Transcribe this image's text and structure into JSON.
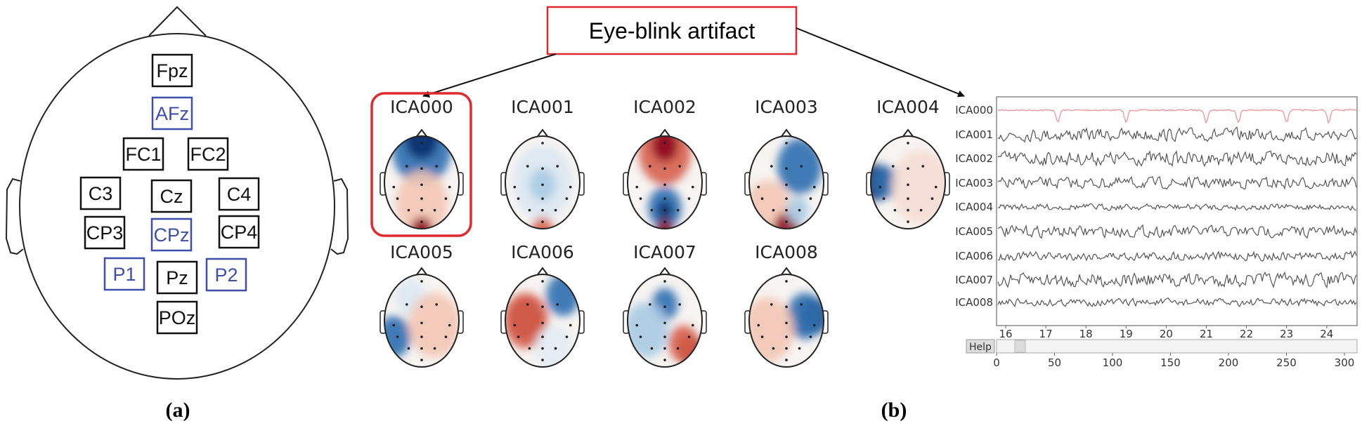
{
  "panel_a": {
    "label": "(a)",
    "electrodes": [
      {
        "name": "Fpz",
        "highlighted": false
      },
      {
        "name": "AFz",
        "highlighted": true
      },
      {
        "name": "FC1",
        "highlighted": false
      },
      {
        "name": "FC2",
        "highlighted": false
      },
      {
        "name": "C3",
        "highlighted": false
      },
      {
        "name": "Cz",
        "highlighted": false
      },
      {
        "name": "C4",
        "highlighted": false
      },
      {
        "name": "CP3",
        "highlighted": false
      },
      {
        "name": "CPz",
        "highlighted": true
      },
      {
        "name": "CP4",
        "highlighted": false
      },
      {
        "name": "P1",
        "highlighted": true
      },
      {
        "name": "Pz",
        "highlighted": false
      },
      {
        "name": "P2",
        "highlighted": true
      },
      {
        "name": "POz",
        "highlighted": false
      }
    ],
    "colors": {
      "normal": "#111111",
      "highlight": "#3f4ea8"
    }
  },
  "callout": {
    "text": "Eye-blink artifact",
    "color": "#e0282f"
  },
  "topomaps": [
    "ICA000",
    "ICA001",
    "ICA002",
    "ICA003",
    "ICA004",
    "ICA005",
    "ICA006",
    "ICA007",
    "ICA008"
  ],
  "selected_component": "ICA000",
  "trace_panel": {
    "labels": [
      "ICA000",
      "ICA001",
      "ICA002",
      "ICA003",
      "ICA004",
      "ICA005",
      "ICA006",
      "ICA007",
      "ICA008"
    ],
    "time_ticks": [
      "16",
      "17",
      "18",
      "19",
      "20",
      "21",
      "22",
      "23",
      "24"
    ],
    "help_label": "Help",
    "scroll_ticks": [
      "0",
      "50",
      "100",
      "150",
      "200",
      "250",
      "300"
    ],
    "highlight_color": "#e8323a"
  },
  "panel_b": {
    "label": "(b)"
  }
}
